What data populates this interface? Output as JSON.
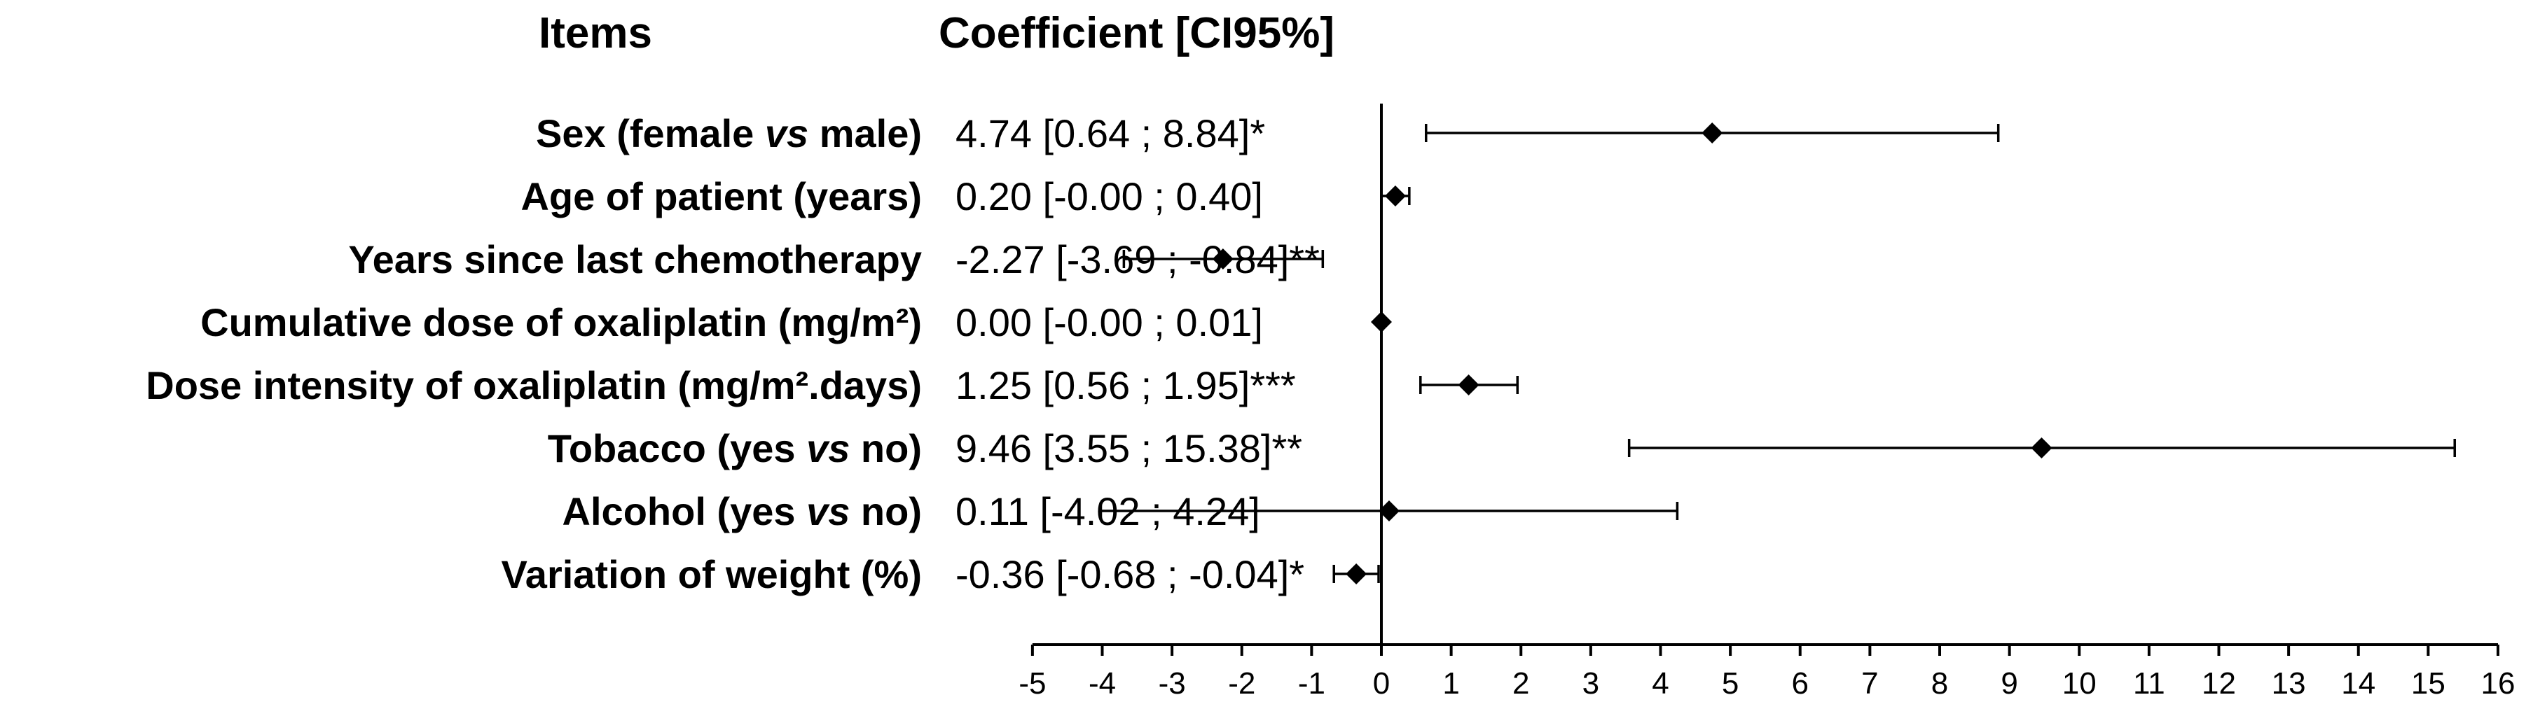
{
  "chart_data": {
    "type": "forest",
    "headers": {
      "items": "Items",
      "coefficient": "Coefficient [CI95%]"
    },
    "rows": [
      {
        "label_before": "Sex (female ",
        "label_italic": "vs",
        "label_after": " male)",
        "estimate": 4.74,
        "lower": 0.64,
        "upper": 8.84,
        "coef_text": "4.74 [0.64 ; 8.84]*"
      },
      {
        "label_before": "Age of patient (years)",
        "label_italic": "",
        "label_after": "",
        "estimate": 0.2,
        "lower": -0.0,
        "upper": 0.4,
        "coef_text": "0.20 [-0.00 ; 0.40]"
      },
      {
        "label_before": "Years since last chemotherapy",
        "label_italic": "",
        "label_after": "",
        "estimate": -2.27,
        "lower": -3.69,
        "upper": -0.84,
        "coef_text": "-2.27 [-3.69 ; -0.84]**"
      },
      {
        "label_before": "Cumulative dose of oxaliplatin (mg/m²)",
        "label_italic": "",
        "label_after": "",
        "estimate": 0.0,
        "lower": -0.0,
        "upper": 0.01,
        "coef_text": "0.00 [-0.00 ; 0.01]"
      },
      {
        "label_before": "Dose intensity of oxaliplatin (mg/m².days)",
        "label_italic": "",
        "label_after": "",
        "estimate": 1.25,
        "lower": 0.56,
        "upper": 1.95,
        "coef_text": "1.25 [0.56 ; 1.95]***"
      },
      {
        "label_before": "Tobacco (yes ",
        "label_italic": "vs",
        "label_after": " no)",
        "estimate": 9.46,
        "lower": 3.55,
        "upper": 15.38,
        "coef_text": "9.46 [3.55 ; 15.38]**"
      },
      {
        "label_before": "Alcohol (yes ",
        "label_italic": "vs",
        "label_after": " no)",
        "estimate": 0.11,
        "lower": -4.02,
        "upper": 4.24,
        "coef_text": "0.11 [-4.02 ; 4.24]"
      },
      {
        "label_before": "Variation of weight (%)",
        "label_italic": "",
        "label_after": "",
        "estimate": -0.36,
        "lower": -0.68,
        "upper": -0.04,
        "coef_text": "-0.36 [-0.68 ; -0.04]*"
      }
    ],
    "xlim": [
      -5,
      16
    ],
    "xticks": [
      -5,
      -4,
      -3,
      -2,
      -1,
      0,
      1,
      2,
      3,
      4,
      5,
      6,
      7,
      8,
      9,
      10,
      11,
      12,
      13,
      14,
      15,
      16
    ],
    "reference_line": 0,
    "marker": "diamond",
    "colors": {
      "ink": "#000000",
      "background": "#ffffff"
    }
  }
}
